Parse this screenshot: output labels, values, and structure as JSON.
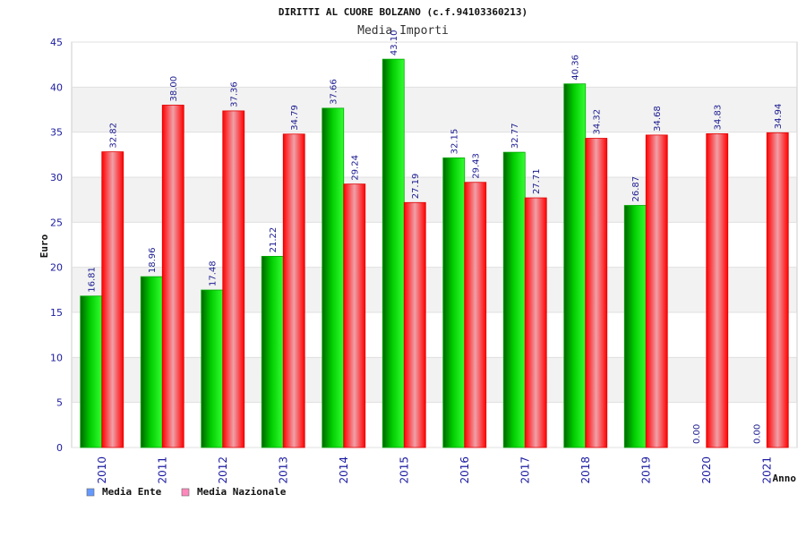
{
  "chart_data": {
    "type": "bar",
    "title": "DIRITTI AL CUORE BOLZANO (c.f.94103360213)",
    "subtitle": "Media Importi",
    "xlabel": "Anno",
    "ylabel": "Euro",
    "ylim": [
      0,
      45
    ],
    "yticks": [
      0,
      5,
      10,
      15,
      20,
      25,
      30,
      35,
      40,
      45
    ],
    "grid": true,
    "legend_position": "bottom-left",
    "categories": [
      "2010",
      "2011",
      "2012",
      "2013",
      "2014",
      "2015",
      "2016",
      "2017",
      "2018",
      "2019",
      "2020",
      "2021"
    ],
    "series": [
      {
        "name": "Media Ente",
        "color": "#00cc00",
        "legend_color": "#6699ff",
        "values": [
          16.81,
          18.96,
          17.48,
          21.22,
          37.66,
          43.1,
          32.15,
          32.77,
          40.36,
          26.87,
          0.0,
          0.0
        ],
        "labels": [
          "16.81",
          "18.96",
          "17.48",
          "21.22",
          "37.66",
          "43.10",
          "32.15",
          "32.77",
          "40.36",
          "26.87",
          "0.00",
          "0.00"
        ]
      },
      {
        "name": "Media Nazionale",
        "color": "#ff1a1a",
        "legend_color": "#ff88bb",
        "values": [
          32.82,
          38.0,
          37.36,
          34.79,
          29.24,
          27.19,
          29.43,
          27.71,
          34.32,
          34.68,
          34.83,
          34.94
        ],
        "labels": [
          "32.82",
          "38.00",
          "37.36",
          "34.79",
          "29.24",
          "27.19",
          "29.43",
          "27.71",
          "34.32",
          "34.68",
          "34.83",
          "34.94"
        ]
      }
    ]
  }
}
